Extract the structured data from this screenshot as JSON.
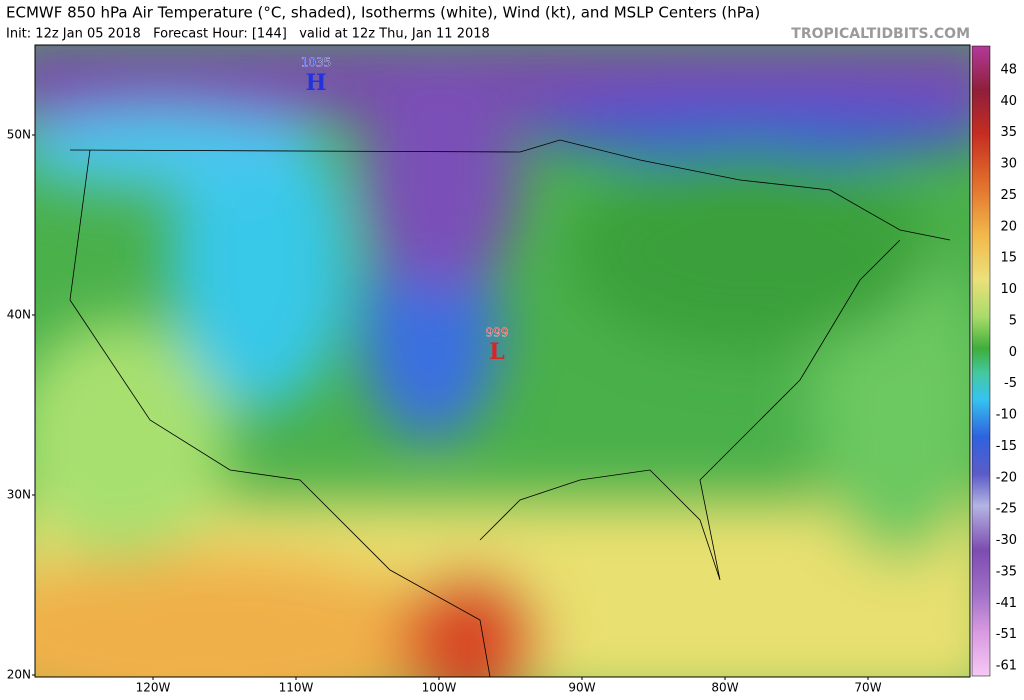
{
  "header": {
    "title": "ECMWF 850 hPa Air Temperature (°C, shaded), Isotherms (white), Wind (kt), and MSLP Centers (hPa)",
    "subtitle": "Init: 12z Jan 05 2018   Forecast Hour: [144]   valid at 12z Thu, Jan 11 2018",
    "site": "TROPICALTIDBITS.COM"
  },
  "map": {
    "lat_labels": [
      "50N",
      "40N",
      "30N",
      "20N"
    ],
    "lon_labels": [
      "120W",
      "110W",
      "100W",
      "90W",
      "80W",
      "70W"
    ],
    "pressure_centers": [
      {
        "value": "1035",
        "symbol": "H"
      },
      {
        "value": "999",
        "symbol": "L"
      }
    ]
  },
  "colorbar": {
    "labels": [
      48,
      40,
      35,
      30,
      25,
      20,
      15,
      10,
      5,
      0,
      -5,
      -10,
      -15,
      -20,
      -25,
      -30,
      -35,
      -41,
      -51,
      -61
    ]
  }
}
